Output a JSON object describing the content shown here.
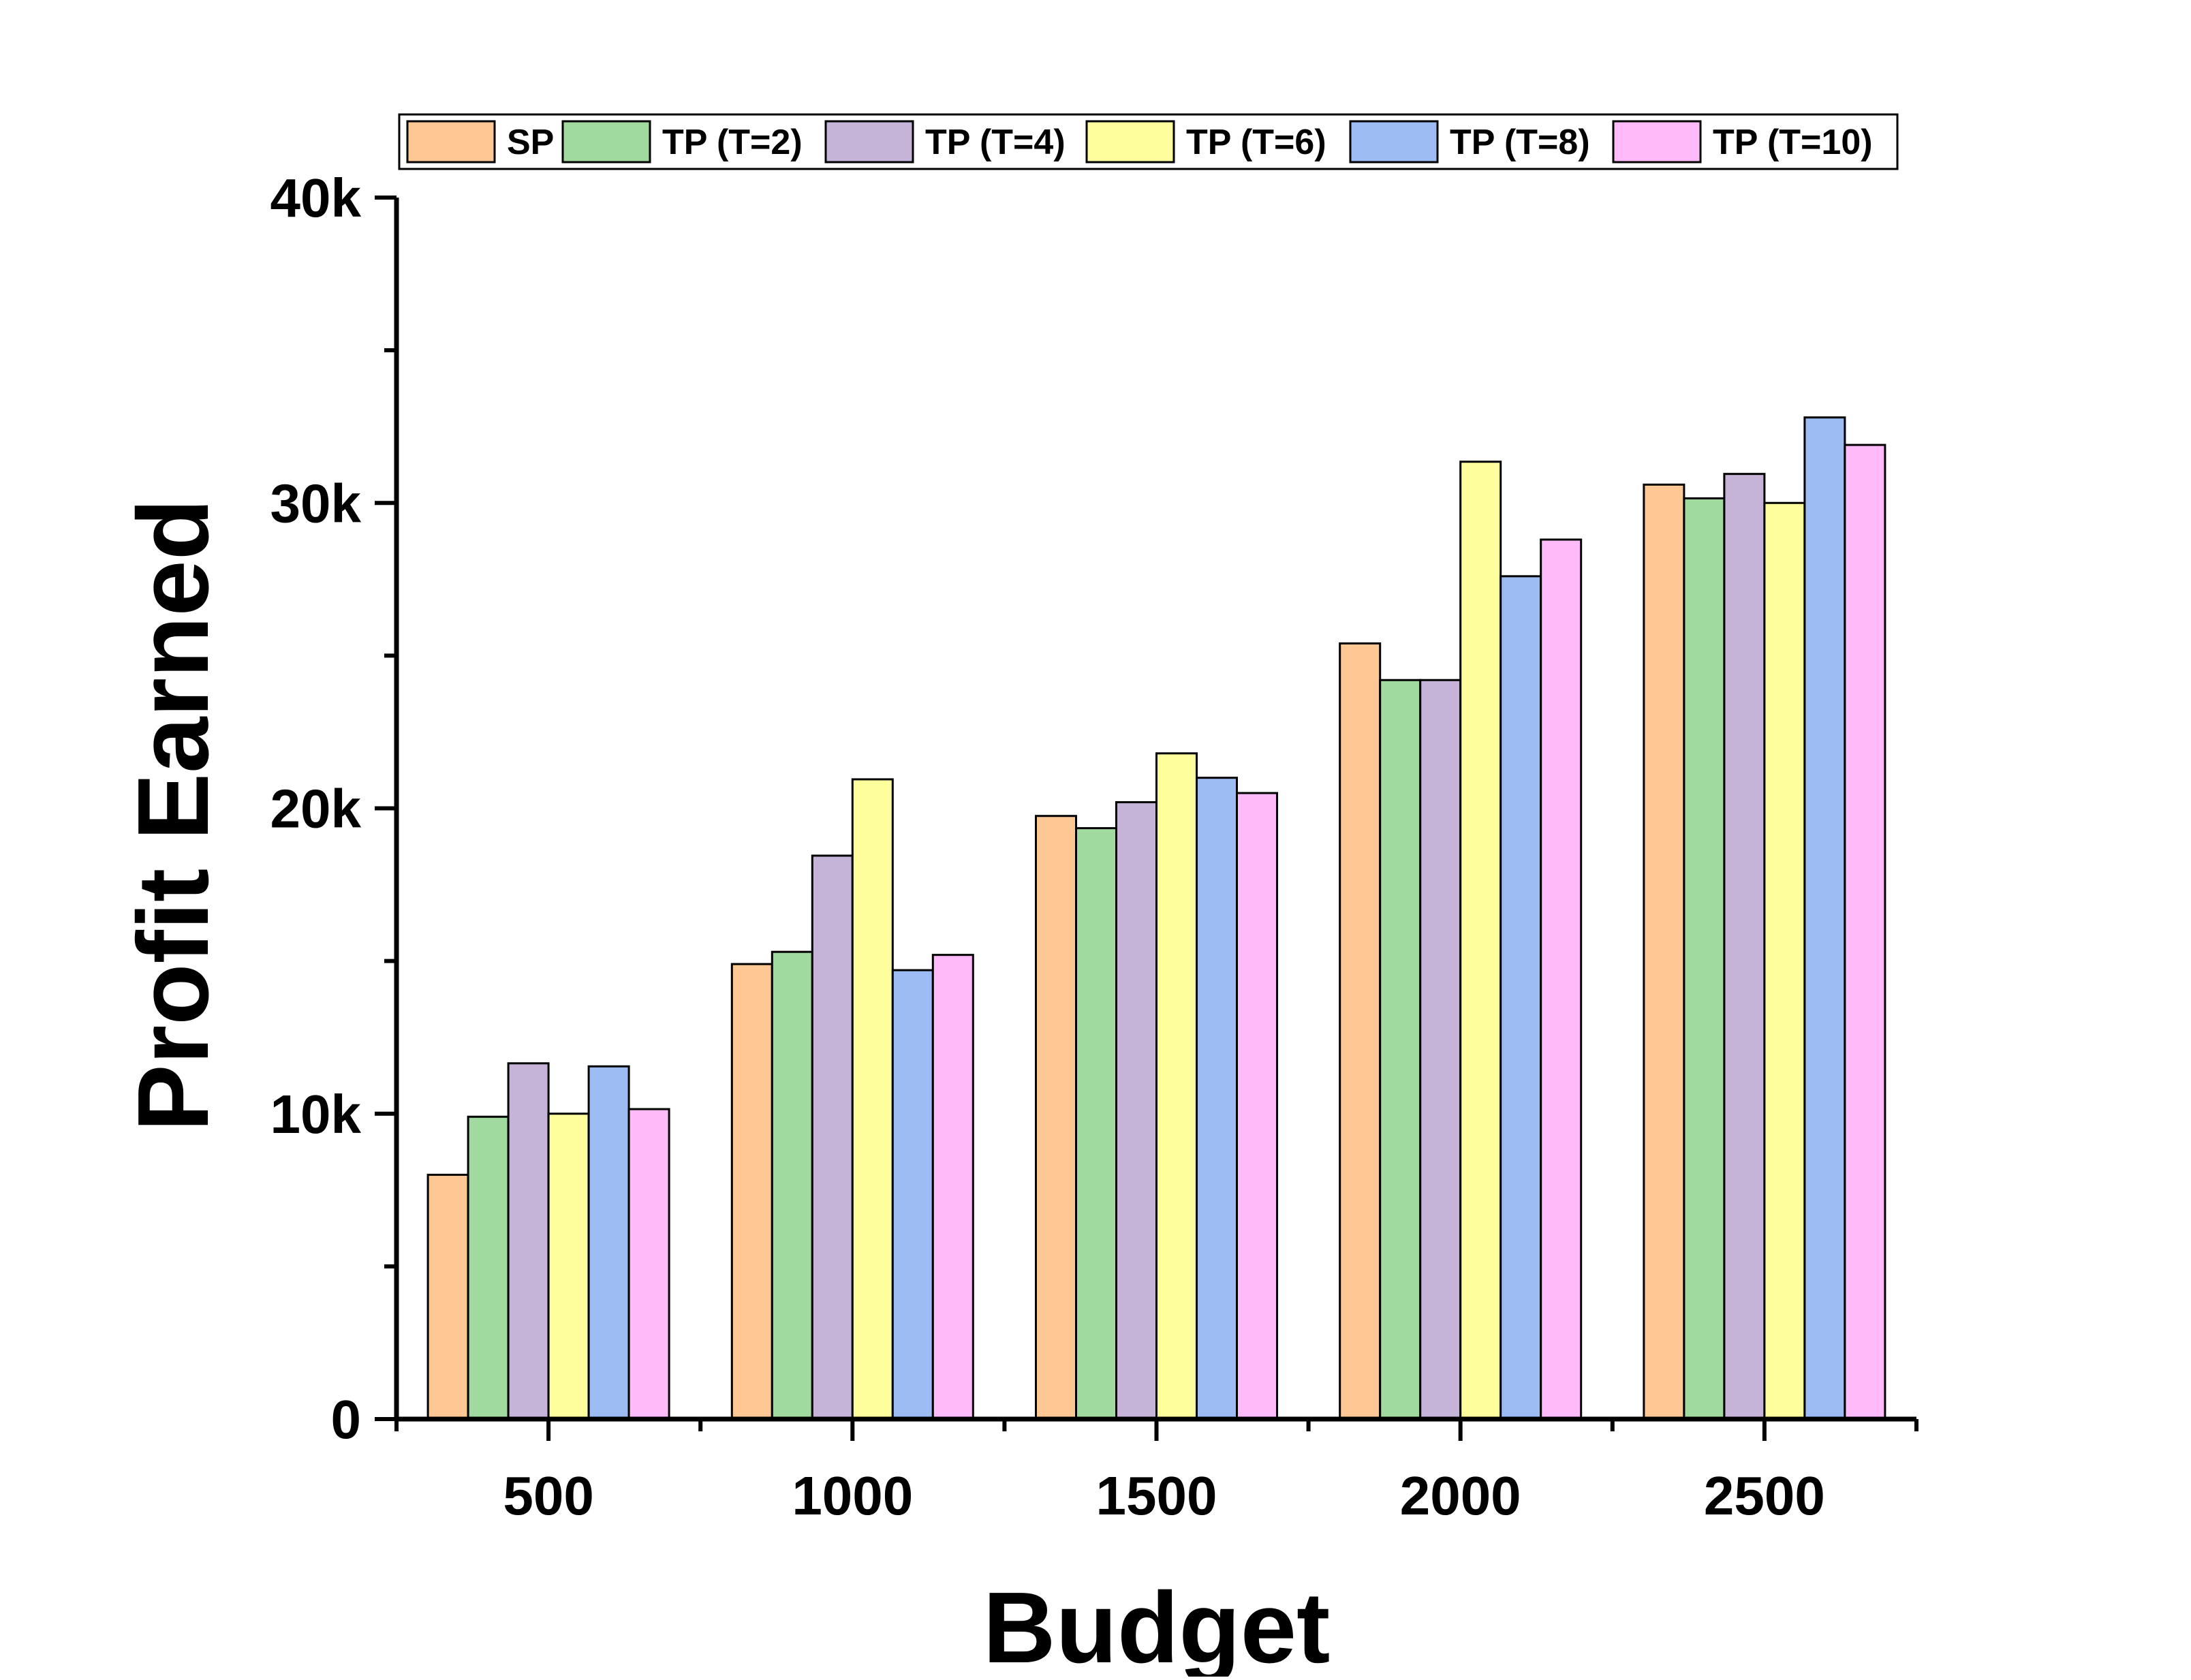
{
  "chart_data": {
    "type": "bar",
    "title": "",
    "xlabel": "Budget",
    "ylabel": "Profit Earned",
    "categories": [
      "500",
      "1000",
      "1500",
      "2000",
      "2500"
    ],
    "ylim": [
      0,
      40000
    ],
    "yticks": [
      {
        "value": 0,
        "label": "0"
      },
      {
        "value": 10000,
        "label": "10k"
      },
      {
        "value": 20000,
        "label": "20k"
      },
      {
        "value": 30000,
        "label": "30k"
      },
      {
        "value": 40000,
        "label": "40k"
      }
    ],
    "grid": false,
    "legend_position": "top",
    "series": [
      {
        "name": "SP",
        "color": "#FDC894",
        "values": [
          8000,
          14900,
          19750,
          25400,
          30600
        ]
      },
      {
        "name": "TP (T=2)",
        "color": "#A0DA9E",
        "values": [
          9900,
          15300,
          19350,
          24200,
          30150
        ]
      },
      {
        "name": "TP (T=4)",
        "color": "#C5B3D8",
        "values": [
          11650,
          18450,
          20200,
          24200,
          30950
        ]
      },
      {
        "name": "TP (T=6)",
        "color": "#FEFE9C",
        "values": [
          10000,
          20950,
          21800,
          31350,
          30000
        ]
      },
      {
        "name": "TP (T=8)",
        "color": "#9DBCF4",
        "values": [
          11550,
          14700,
          21000,
          27600,
          32800
        ]
      },
      {
        "name": "TP (T=10)",
        "color": "#FFBAF9",
        "values": [
          10150,
          15200,
          20500,
          28800,
          31900
        ]
      }
    ]
  }
}
